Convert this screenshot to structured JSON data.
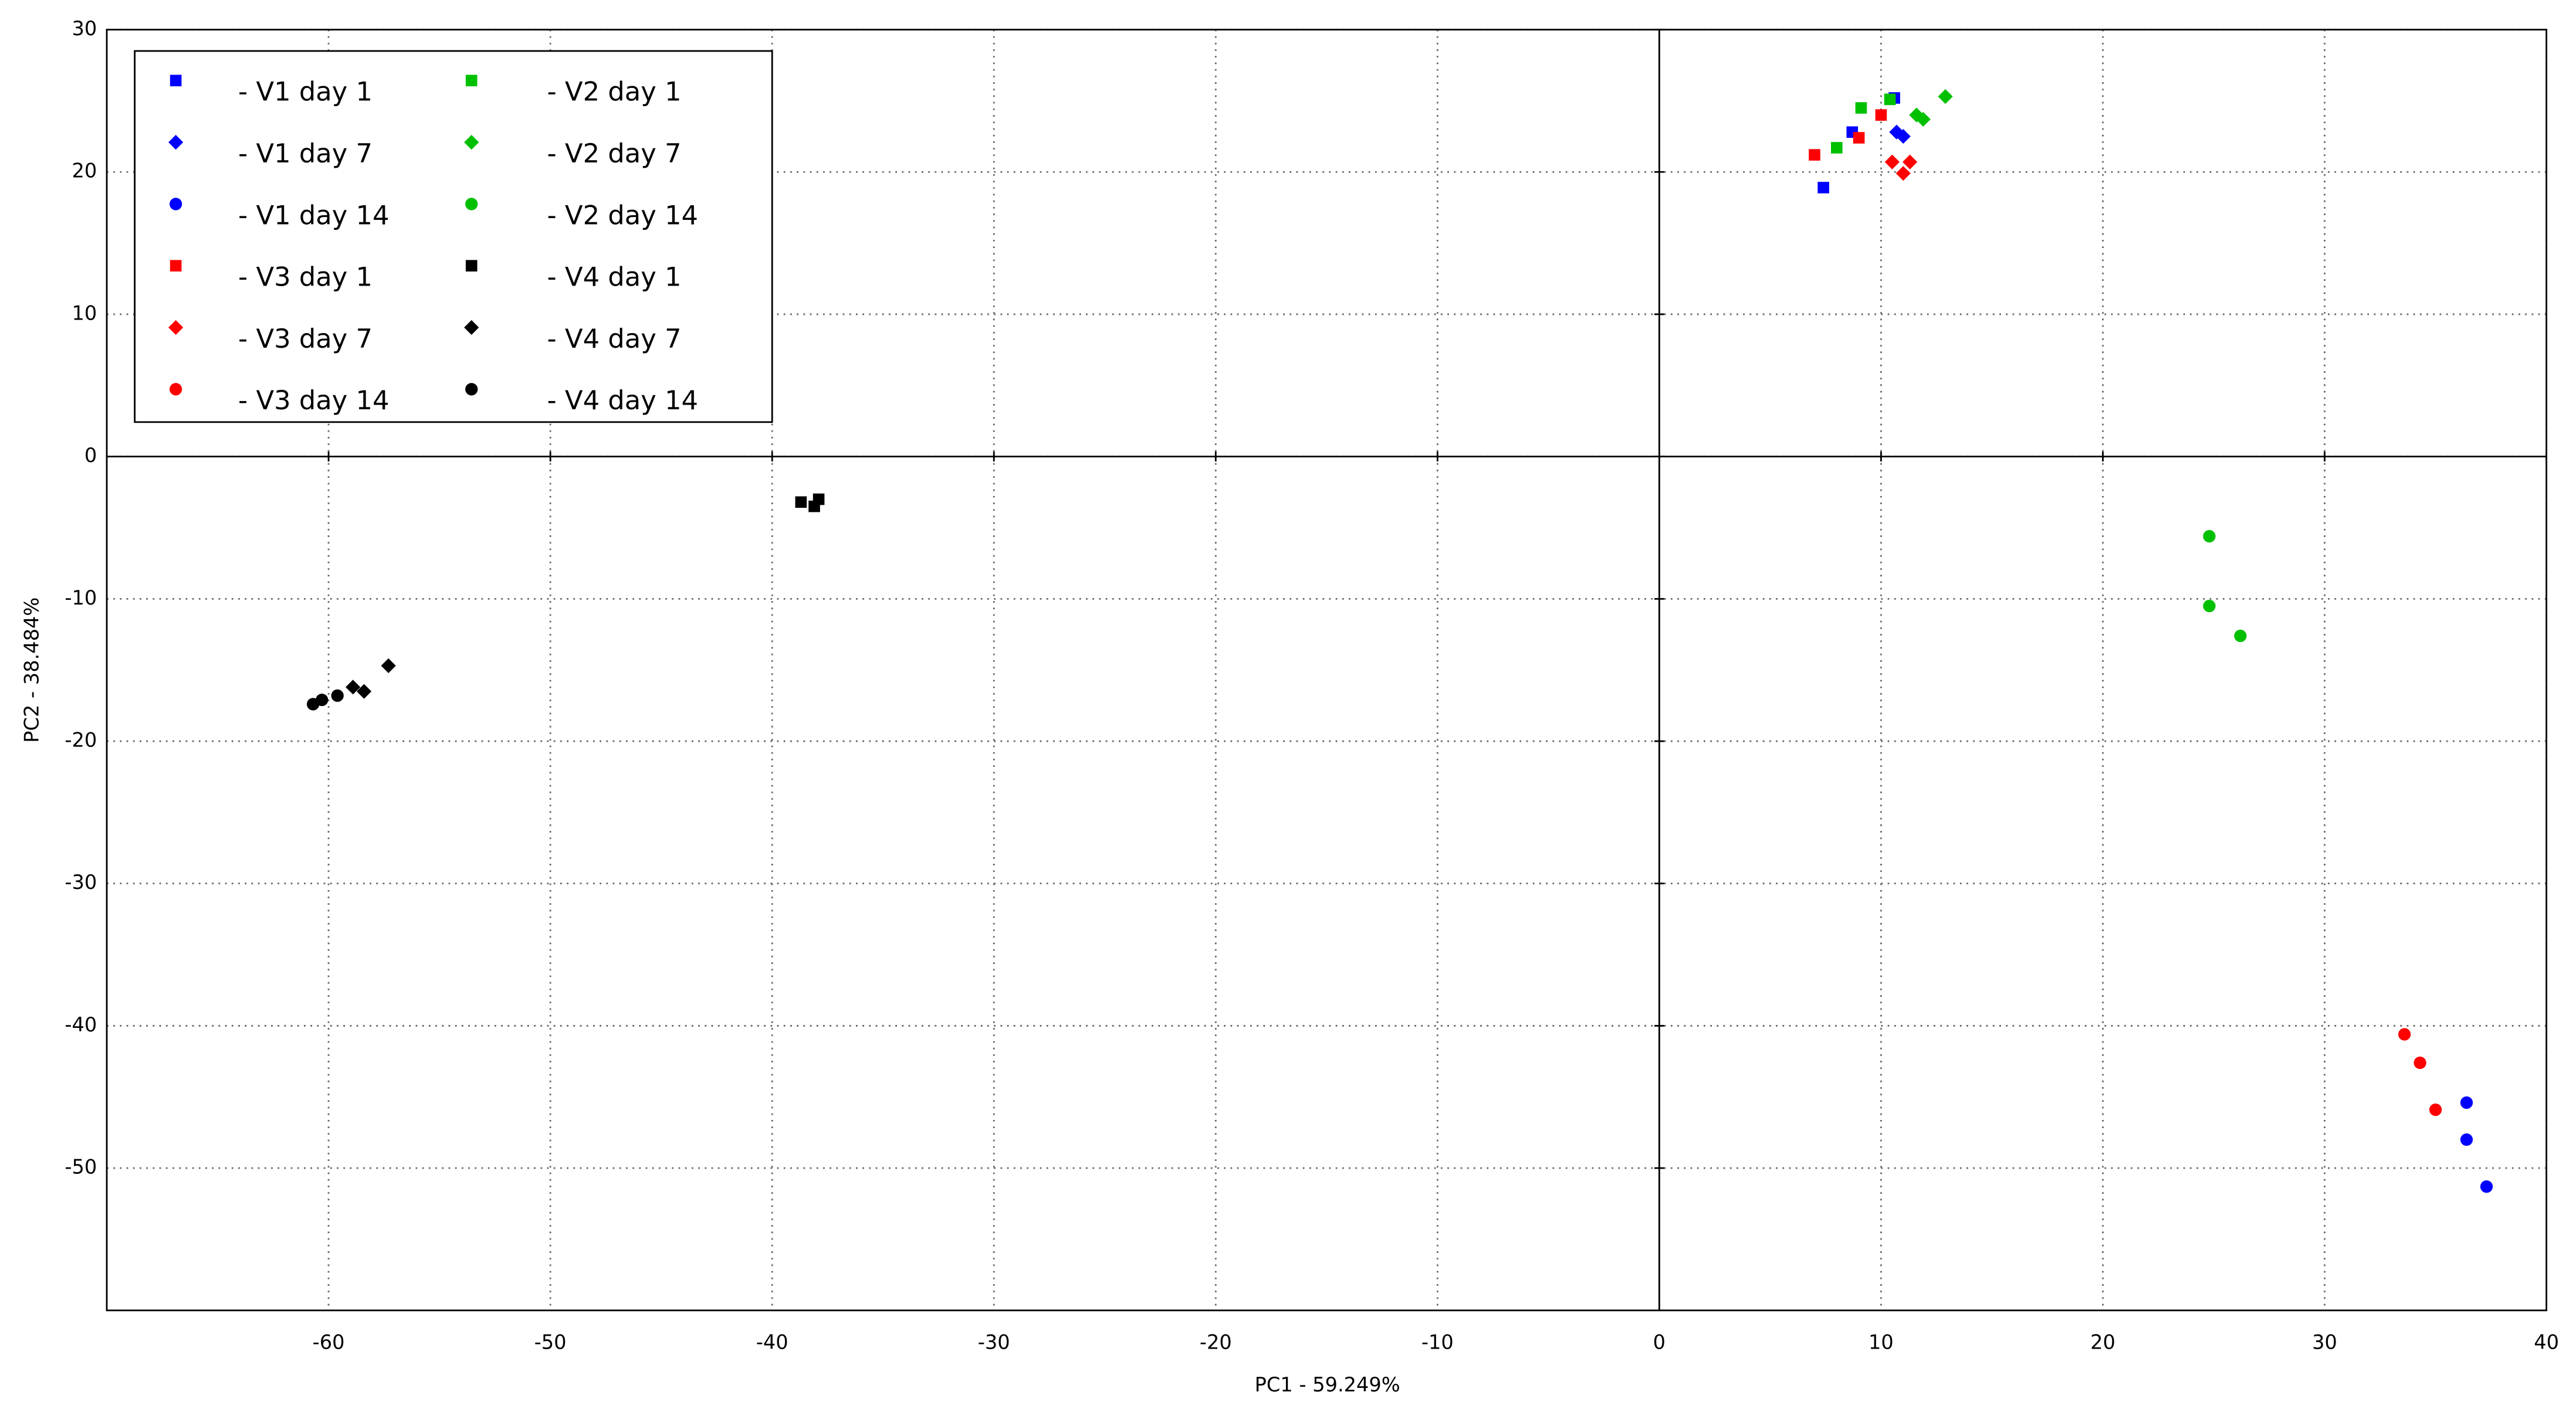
{
  "chart_data": {
    "type": "scatter",
    "xlabel": "PC1 - 59.249%",
    "ylabel": "PC2 - 38.484%",
    "xlim": [
      -70,
      40
    ],
    "ylim": [
      -60,
      30
    ],
    "xticks": [
      -60,
      -50,
      -40,
      -30,
      -20,
      -10,
      0,
      10,
      20,
      30,
      40
    ],
    "yticks": [
      -50,
      -40,
      -30,
      -20,
      -10,
      0,
      10,
      20,
      30
    ],
    "grid": true,
    "legend": "upper left",
    "series": [
      {
        "name": "- V1 day 1",
        "color": "#0000ff",
        "marker": "square",
        "x": [
          7.4,
          10.6,
          8.7
        ],
        "values": [
          18.9,
          25.2,
          22.8
        ]
      },
      {
        "name": "- V1 day 7",
        "color": "#0000ff",
        "marker": "diamond",
        "x": [
          10.7,
          11.0
        ],
        "values": [
          22.8,
          22.5
        ]
      },
      {
        "name": "- V1 day 14",
        "color": "#0000ff",
        "marker": "circle",
        "x": [
          36.4,
          36.4,
          37.3
        ],
        "values": [
          -45.4,
          -48.0,
          -51.3
        ]
      },
      {
        "name": "- V2 day 1",
        "color": "#00c000",
        "marker": "square",
        "x": [
          8.0,
          9.1,
          10.4
        ],
        "values": [
          21.7,
          24.5,
          25.1
        ]
      },
      {
        "name": "- V2 day 7",
        "color": "#00c000",
        "marker": "diamond",
        "x": [
          12.9,
          11.6,
          11.9
        ],
        "values": [
          25.3,
          24.0,
          23.7
        ]
      },
      {
        "name": "- V2 day 14",
        "color": "#00c000",
        "marker": "circle",
        "x": [
          24.8,
          24.8,
          26.2
        ],
        "values": [
          -5.6,
          -10.5,
          -12.6
        ]
      },
      {
        "name": "- V3 day 1",
        "color": "#ff0000",
        "marker": "square",
        "x": [
          7.0,
          9.0,
          10.0
        ],
        "values": [
          21.2,
          22.4,
          24.0
        ]
      },
      {
        "name": "- V3 day 7",
        "color": "#ff0000",
        "marker": "diamond",
        "x": [
          10.5,
          11.3,
          11.0
        ],
        "values": [
          20.7,
          20.7,
          19.9
        ]
      },
      {
        "name": "- V3 day 14",
        "color": "#ff0000",
        "marker": "circle",
        "x": [
          33.6,
          34.3,
          35.0
        ],
        "values": [
          -40.6,
          -42.6,
          -45.9
        ]
      },
      {
        "name": "- V4 day 1",
        "color": "#000000",
        "marker": "square",
        "x": [
          -38.7,
          -38.1,
          -37.9
        ],
        "values": [
          -3.2,
          -3.5,
          -3.0
        ]
      },
      {
        "name": "- V4 day 7",
        "color": "#000000",
        "marker": "diamond",
        "x": [
          -57.3,
          -58.9,
          -58.4
        ],
        "values": [
          -14.7,
          -16.2,
          -16.5
        ]
      },
      {
        "name": "- V4 day 14",
        "color": "#000000",
        "marker": "circle",
        "x": [
          -60.7,
          -60.3,
          -59.6
        ],
        "values": [
          -17.4,
          -17.1,
          -16.8
        ]
      }
    ]
  }
}
